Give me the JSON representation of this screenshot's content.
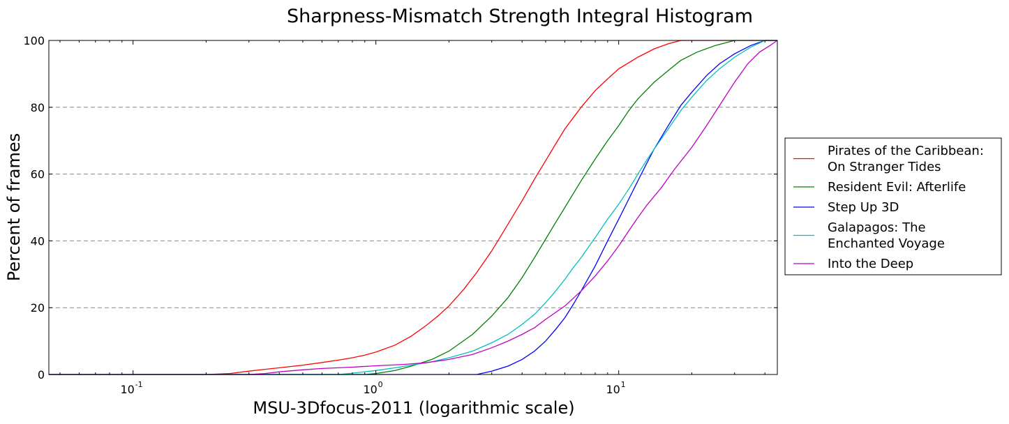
{
  "chart_data": {
    "type": "line",
    "title": "Sharpness-Mismatch Strength Integral Histogram",
    "xlabel": "MSU-3Dfocus-2011 (logarithmic scale)",
    "ylabel": "Percent of frames",
    "xscale": "log",
    "xlim": [
      0.045,
      45
    ],
    "ylim": [
      0,
      100
    ],
    "x_tick_values": [
      0.1,
      1,
      10
    ],
    "x_tick_labels": [
      {
        "base": "10",
        "exp": "-1"
      },
      {
        "base": "10",
        "exp": "0"
      },
      {
        "base": "10",
        "exp": "1"
      }
    ],
    "y_tick_values": [
      0,
      20,
      40,
      60,
      80,
      100
    ],
    "y_tick_labels": [
      "0",
      "20",
      "40",
      "60",
      "80",
      "100"
    ],
    "grid": "horizontal dashed",
    "legend_placement": "outside-right",
    "series": [
      {
        "name": "Pirates of the Caribbean: On Stranger Tides",
        "legend_lines": [
          "Pirates of the Caribbean:",
          "On Stranger Tides"
        ],
        "color": "#ff0000",
        "points": [
          [
            0.045,
            0
          ],
          [
            0.2,
            0
          ],
          [
            0.25,
            0.3
          ],
          [
            0.3,
            1
          ],
          [
            0.4,
            2
          ],
          [
            0.5,
            2.8
          ],
          [
            0.6,
            3.6
          ],
          [
            0.7,
            4.3
          ],
          [
            0.8,
            5
          ],
          [
            0.9,
            5.8
          ],
          [
            1.0,
            6.7
          ],
          [
            1.2,
            8.8
          ],
          [
            1.4,
            11.5
          ],
          [
            1.6,
            14.5
          ],
          [
            1.8,
            17.5
          ],
          [
            2.0,
            20.5
          ],
          [
            2.3,
            25.5
          ],
          [
            2.6,
            30.5
          ],
          [
            3.0,
            37
          ],
          [
            3.5,
            45
          ],
          [
            4.0,
            52
          ],
          [
            4.5,
            58.5
          ],
          [
            5.0,
            64
          ],
          [
            5.5,
            69
          ],
          [
            6.0,
            73.5
          ],
          [
            7.0,
            80
          ],
          [
            8.0,
            85
          ],
          [
            9.0,
            88.5
          ],
          [
            10,
            91.5
          ],
          [
            12,
            95
          ],
          [
            14,
            97.5
          ],
          [
            16,
            99
          ],
          [
            18,
            100
          ],
          [
            45,
            100
          ]
        ]
      },
      {
        "name": "Resident Evil: Afterlife",
        "legend_lines": [
          "Resident Evil: Afterlife"
        ],
        "color": "#008000",
        "points": [
          [
            0.045,
            0
          ],
          [
            0.9,
            0
          ],
          [
            1.0,
            0.3
          ],
          [
            1.2,
            1.2
          ],
          [
            1.4,
            2.5
          ],
          [
            1.7,
            4.5
          ],
          [
            2.0,
            7
          ],
          [
            2.5,
            12
          ],
          [
            3.0,
            17.5
          ],
          [
            3.5,
            23
          ],
          [
            4.0,
            29
          ],
          [
            4.5,
            35
          ],
          [
            5.0,
            40.5
          ],
          [
            5.5,
            45.5
          ],
          [
            6.0,
            50
          ],
          [
            7.0,
            58
          ],
          [
            8.0,
            64.5
          ],
          [
            9.0,
            70
          ],
          [
            10,
            74.5
          ],
          [
            11,
            79
          ],
          [
            12,
            82.5
          ],
          [
            14,
            87.5
          ],
          [
            16,
            91
          ],
          [
            18,
            94
          ],
          [
            21,
            96.5
          ],
          [
            25,
            98.5
          ],
          [
            30,
            100
          ],
          [
            45,
            100
          ]
        ]
      },
      {
        "name": "Step Up 3D",
        "legend_lines": [
          "Step Up 3D"
        ],
        "color": "#0000ff",
        "points": [
          [
            0.045,
            0
          ],
          [
            2.6,
            0
          ],
          [
            3.0,
            1
          ],
          [
            3.5,
            2.5
          ],
          [
            4.0,
            4.5
          ],
          [
            4.5,
            7
          ],
          [
            5.0,
            10
          ],
          [
            5.5,
            13.5
          ],
          [
            6.0,
            17
          ],
          [
            6.5,
            21
          ],
          [
            7.0,
            25
          ],
          [
            8.0,
            32.5
          ],
          [
            9.0,
            40
          ],
          [
            10,
            46.5
          ],
          [
            11,
            52.5
          ],
          [
            12,
            58
          ],
          [
            13,
            63
          ],
          [
            14,
            67.5
          ],
          [
            16,
            74.5
          ],
          [
            18,
            80.5
          ],
          [
            20,
            84.5
          ],
          [
            23,
            89.5
          ],
          [
            26,
            93
          ],
          [
            30,
            96
          ],
          [
            35,
            98.5
          ],
          [
            40,
            100
          ],
          [
            45,
            100
          ]
        ]
      },
      {
        "name": "Galapagos: The Enchanted Voyage",
        "legend_lines": [
          "Galapagos: The",
          "Enchanted Voyage"
        ],
        "color": "#00bfbf",
        "points": [
          [
            0.045,
            0
          ],
          [
            0.7,
            0
          ],
          [
            0.8,
            0.4
          ],
          [
            1.0,
            1.2
          ],
          [
            1.2,
            2
          ],
          [
            1.4,
            2.8
          ],
          [
            1.7,
            3.8
          ],
          [
            2.0,
            5
          ],
          [
            2.5,
            7
          ],
          [
            3.0,
            9.5
          ],
          [
            3.5,
            12
          ],
          [
            4.0,
            15
          ],
          [
            4.5,
            18
          ],
          [
            5.0,
            21.5
          ],
          [
            5.5,
            25
          ],
          [
            6.0,
            28.5
          ],
          [
            6.5,
            32
          ],
          [
            7.0,
            35
          ],
          [
            8.0,
            41
          ],
          [
            9.0,
            46.5
          ],
          [
            10,
            51
          ],
          [
            11,
            55.5
          ],
          [
            12,
            60
          ],
          [
            13,
            64
          ],
          [
            14,
            67.5
          ],
          [
            16,
            73.5
          ],
          [
            18,
            79
          ],
          [
            20,
            83
          ],
          [
            23,
            88
          ],
          [
            26,
            91.5
          ],
          [
            30,
            95
          ],
          [
            35,
            98
          ],
          [
            40,
            100
          ],
          [
            45,
            100
          ]
        ]
      },
      {
        "name": "Into the Deep",
        "legend_lines": [
          "Into the Deep"
        ],
        "color": "#bf00bf",
        "points": [
          [
            0.045,
            0
          ],
          [
            0.3,
            0
          ],
          [
            0.35,
            0.3
          ],
          [
            0.4,
            0.8
          ],
          [
            0.5,
            1.4
          ],
          [
            0.6,
            1.8
          ],
          [
            0.8,
            2.2
          ],
          [
            1.0,
            2.6
          ],
          [
            1.3,
            3
          ],
          [
            1.6,
            3.5
          ],
          [
            2.0,
            4.5
          ],
          [
            2.5,
            6
          ],
          [
            3.0,
            8
          ],
          [
            3.5,
            10
          ],
          [
            4.0,
            12
          ],
          [
            4.5,
            14
          ],
          [
            5.0,
            16.5
          ],
          [
            6.0,
            20.5
          ],
          [
            7.0,
            25
          ],
          [
            8.0,
            29.5
          ],
          [
            9.0,
            34
          ],
          [
            10,
            38.5
          ],
          [
            11,
            43
          ],
          [
            12,
            47
          ],
          [
            13,
            50.5
          ],
          [
            15,
            56
          ],
          [
            17,
            61.5
          ],
          [
            20,
            68
          ],
          [
            23,
            74.5
          ],
          [
            26,
            80.5
          ],
          [
            30,
            87.5
          ],
          [
            34,
            93
          ],
          [
            38,
            96.5
          ],
          [
            42,
            98.5
          ],
          [
            45,
            100
          ]
        ]
      }
    ]
  }
}
